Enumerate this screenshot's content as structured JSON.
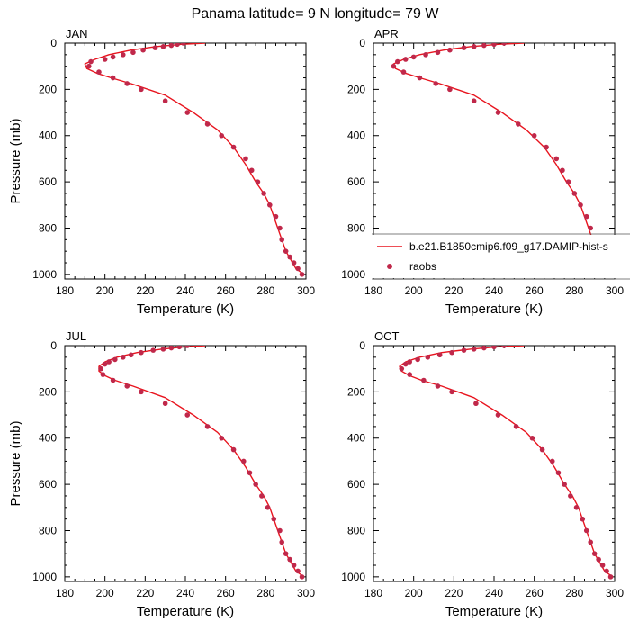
{
  "figure": {
    "title": "Panama  latitude= 9 N longitude= 79 W"
  },
  "colors": {
    "model_line": "#e8141e",
    "raobs_marker": "#c0284a",
    "axis": "#000000"
  },
  "chart_data": [
    {
      "type": "line",
      "panel": "JAN",
      "xlabel": "Temperature (K)",
      "ylabel": "Pressure (mb)",
      "xlim": [
        180,
        300
      ],
      "ylim": [
        1020,
        0
      ],
      "xticks": [
        180,
        200,
        220,
        240,
        260,
        280,
        300
      ],
      "yticks": [
        0,
        200,
        400,
        600,
        800,
        1000
      ],
      "series": [
        {
          "name": "b.e21.B1850cmip6.f09_g17.DAMIP-hist-s",
          "kind": "line",
          "x": [
            250,
            238,
            225,
            213,
            202,
            195,
            190,
            191,
            196,
            203,
            213,
            230,
            244,
            256,
            264,
            270,
            275,
            279,
            282,
            286,
            290,
            295,
            299
          ],
          "y": [
            0,
            5,
            15,
            30,
            50,
            70,
            90,
            110,
            130,
            150,
            175,
            225,
            300,
            375,
            450,
            525,
            600,
            650,
            700,
            800,
            900,
            975,
            1000
          ]
        },
        {
          "name": "raobs",
          "kind": "marker",
          "x": [
            239,
            236,
            233,
            229,
            225,
            219,
            214,
            209,
            204,
            200,
            193,
            192,
            197,
            204,
            211,
            218,
            230,
            241,
            251,
            258,
            264,
            270,
            273,
            276,
            279,
            282,
            285,
            287,
            288,
            290,
            292,
            294,
            296,
            298
          ],
          "y": [
            0,
            5,
            10,
            15,
            20,
            30,
            40,
            50,
            60,
            70,
            80,
            100,
            125,
            150,
            175,
            200,
            250,
            300,
            350,
            400,
            450,
            500,
            550,
            600,
            650,
            700,
            750,
            800,
            850,
            900,
            925,
            950,
            975,
            1000
          ]
        }
      ]
    },
    {
      "type": "line",
      "panel": "APR",
      "xlabel": "Temperature (K)",
      "ylabel": "",
      "xlim": [
        180,
        300
      ],
      "ylim": [
        1020,
        0
      ],
      "xticks": [
        180,
        200,
        220,
        240,
        260,
        280,
        300
      ],
      "yticks": [
        0,
        200,
        400,
        600,
        800,
        1000
      ],
      "legend": {
        "placement": "lower-right",
        "entries": [
          {
            "label": "b.e21.B1850cmip6.f09_g17.DAMIP-hist-s",
            "kind": "line"
          },
          {
            "label": "raobs",
            "kind": "marker"
          }
        ]
      },
      "series": [
        {
          "name": "b.e21.B1850cmip6.f09_g17.DAMIP-hist-s",
          "kind": "line",
          "x": [
            255,
            242,
            228,
            215,
            203,
            195,
            190,
            191,
            196,
            203,
            213,
            230,
            244,
            256,
            265,
            271,
            276,
            280,
            283,
            287,
            291,
            296,
            299
          ],
          "y": [
            0,
            5,
            15,
            30,
            50,
            70,
            90,
            110,
            130,
            150,
            175,
            225,
            300,
            375,
            450,
            525,
            600,
            650,
            700,
            800,
            900,
            975,
            1000
          ]
        },
        {
          "name": "raobs",
          "kind": "marker",
          "x": [
            245,
            240,
            235,
            230,
            225,
            218,
            212,
            206,
            200,
            196,
            192,
            190,
            195,
            203,
            211,
            218,
            230,
            242,
            252,
            260,
            266,
            271,
            274,
            277,
            280,
            283,
            286,
            288,
            289,
            290,
            292,
            294,
            296,
            298
          ],
          "y": [
            0,
            5,
            10,
            15,
            20,
            30,
            40,
            50,
            60,
            70,
            80,
            100,
            125,
            150,
            175,
            200,
            250,
            300,
            350,
            400,
            450,
            500,
            550,
            600,
            650,
            700,
            750,
            800,
            850,
            900,
            925,
            950,
            975,
            1000
          ]
        }
      ]
    },
    {
      "type": "line",
      "panel": "JUL",
      "xlabel": "Temperature (K)",
      "ylabel": "Pressure (mb)",
      "xlim": [
        180,
        300
      ],
      "ylim": [
        1020,
        0
      ],
      "xticks": [
        180,
        200,
        220,
        240,
        260,
        280,
        300
      ],
      "yticks": [
        0,
        200,
        400,
        600,
        800,
        1000
      ],
      "series": [
        {
          "name": "b.e21.B1850cmip6.f09_g17.DAMIP-hist-s",
          "kind": "line",
          "x": [
            250,
            240,
            228,
            216,
            206,
            200,
            197,
            197,
            200,
            205,
            214,
            230,
            244,
            256,
            264,
            270,
            275,
            279,
            282,
            286,
            290,
            295,
            299
          ],
          "y": [
            0,
            5,
            15,
            30,
            50,
            70,
            90,
            110,
            130,
            150,
            175,
            225,
            300,
            375,
            450,
            525,
            600,
            650,
            700,
            800,
            900,
            975,
            1000
          ]
        },
        {
          "name": "raobs",
          "kind": "marker",
          "x": [
            241,
            237,
            233,
            229,
            224,
            218,
            213,
            209,
            205,
            202,
            200,
            198,
            199,
            204,
            211,
            218,
            230,
            241,
            251,
            258,
            264,
            269,
            272,
            275,
            278,
            281,
            284,
            287,
            288,
            290,
            292,
            294,
            296,
            298
          ],
          "y": [
            0,
            5,
            10,
            15,
            20,
            30,
            40,
            50,
            60,
            70,
            80,
            100,
            125,
            150,
            175,
            200,
            250,
            300,
            350,
            400,
            450,
            500,
            550,
            600,
            650,
            700,
            750,
            800,
            850,
            900,
            925,
            950,
            975,
            1000
          ]
        }
      ]
    },
    {
      "type": "line",
      "panel": "OCT",
      "xlabel": "Temperature (K)",
      "ylabel": "",
      "xlim": [
        180,
        300
      ],
      "ylim": [
        1020,
        0
      ],
      "xticks": [
        180,
        200,
        220,
        240,
        260,
        280,
        300
      ],
      "yticks": [
        0,
        200,
        400,
        600,
        800,
        1000
      ],
      "series": [
        {
          "name": "b.e21.B1850cmip6.f09_g17.DAMIP-hist-s",
          "kind": "line",
          "x": [
            255,
            242,
            228,
            214,
            203,
            196,
            193,
            194,
            198,
            204,
            214,
            230,
            244,
            256,
            264,
            270,
            275,
            279,
            282,
            286,
            290,
            295,
            299
          ],
          "y": [
            0,
            5,
            15,
            30,
            50,
            70,
            90,
            110,
            130,
            150,
            175,
            225,
            300,
            375,
            450,
            525,
            600,
            650,
            700,
            800,
            900,
            975,
            1000
          ]
        },
        {
          "name": "raobs",
          "kind": "marker",
          "x": [
            245,
            240,
            235,
            230,
            225,
            219,
            213,
            207,
            202,
            198,
            196,
            194,
            198,
            205,
            212,
            219,
            231,
            242,
            251,
            259,
            264,
            269,
            272,
            275,
            278,
            281,
            284,
            286,
            288,
            290,
            292,
            294,
            296,
            298
          ],
          "y": [
            0,
            5,
            10,
            15,
            20,
            30,
            40,
            50,
            60,
            70,
            80,
            100,
            125,
            150,
            175,
            200,
            250,
            300,
            350,
            400,
            450,
            500,
            550,
            600,
            650,
            700,
            750,
            800,
            850,
            900,
            925,
            950,
            975,
            1000
          ]
        }
      ]
    }
  ]
}
